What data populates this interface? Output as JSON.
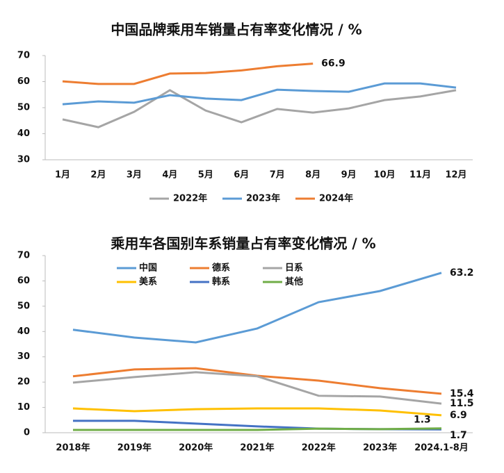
{
  "chart_data": [
    {
      "type": "line",
      "title": "中国品牌乘用车销量占有率变化情况 / %",
      "categories": [
        "1月",
        "2月",
        "3月",
        "4月",
        "5月",
        "6月",
        "7月",
        "8月",
        "9月",
        "10月",
        "11月",
        "12月"
      ],
      "ylim": [
        30,
        70
      ],
      "yticks": [
        30,
        40,
        50,
        60,
        70
      ],
      "legend": "bottom",
      "series": [
        {
          "name": "2022年",
          "color": "#a5a5a5",
          "values": [
            45.5,
            42.5,
            48.4,
            56.7,
            48.9,
            44.4,
            49.5,
            48.1,
            49.7,
            52.9,
            54.3,
            56.7
          ]
        },
        {
          "name": "2023年",
          "color": "#5b9bd5",
          "values": [
            51.3,
            52.4,
            51.9,
            54.8,
            53.5,
            52.9,
            56.9,
            56.4,
            56.1,
            59.3,
            59.3,
            57.7
          ]
        },
        {
          "name": "2024年",
          "color": "#ed7d31",
          "values": [
            60.1,
            59.1,
            59.1,
            63.1,
            63.3,
            64.3,
            65.9,
            66.9,
            null,
            null,
            null,
            null
          ]
        }
      ]
    },
    {
      "type": "line",
      "title": "乘用车各国别车系销量占有率变化情况 / %",
      "categories": [
        "2018年",
        "2019年",
        "2020年",
        "2021年",
        "2022年",
        "2023年",
        "2024.1-8月"
      ],
      "ylim": [
        0,
        70
      ],
      "yticks": [
        0,
        10,
        20,
        30,
        40,
        50,
        60,
        70
      ],
      "legend": "upper left",
      "series": [
        {
          "name": "中国",
          "color": "#5b9bd5",
          "values": [
            40.7,
            37.6,
            35.7,
            41.2,
            51.6,
            56.0,
            63.2
          ]
        },
        {
          "name": "德系",
          "color": "#ed7d31",
          "values": [
            22.3,
            25.0,
            25.5,
            22.5,
            20.6,
            17.6,
            15.4
          ]
        },
        {
          "name": "日系",
          "color": "#a5a5a5",
          "values": [
            19.8,
            22.0,
            23.9,
            22.3,
            14.6,
            14.3,
            11.5
          ]
        },
        {
          "name": "美系",
          "color": "#ffc000",
          "values": [
            9.6,
            8.5,
            9.3,
            9.6,
            9.6,
            8.8,
            6.9
          ]
        },
        {
          "name": "韩系",
          "color": "#4472c4",
          "values": [
            4.7,
            4.7,
            3.6,
            2.5,
            1.6,
            1.4,
            1.3
          ]
        },
        {
          "name": "其他",
          "color": "#70ad47",
          "values": [
            1.1,
            1.1,
            1.1,
            1.1,
            1.6,
            1.4,
            1.7
          ]
        }
      ]
    }
  ]
}
